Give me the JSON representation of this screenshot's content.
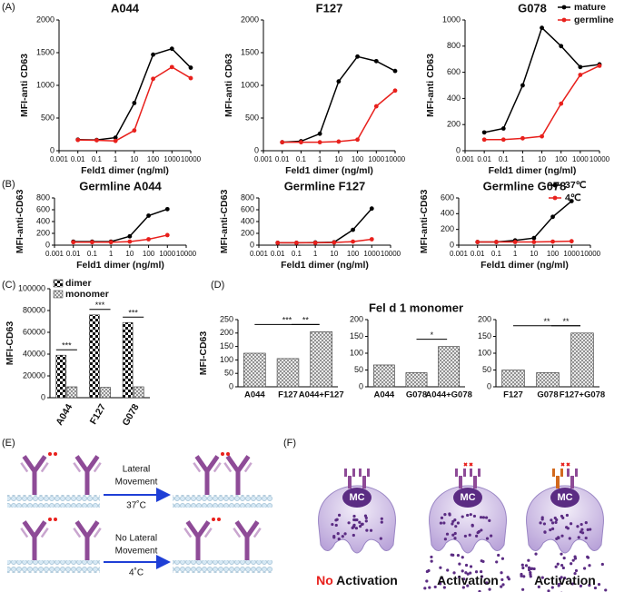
{
  "panel_labels": [
    "(A)",
    "(B)",
    "(C)",
    "(D)",
    "(E)",
    "(F)"
  ],
  "panel_d_title": "Fel d 1 monomer",
  "chart_data": [
    {
      "type": "line",
      "title": "A044",
      "x_label": "Feld1 dimer (ng/ml)",
      "y_label": "MFI-anti CD63",
      "log_x": true,
      "x": [
        0.01,
        0.1,
        1,
        10,
        100,
        1000,
        10000
      ],
      "xlim": [
        0.001,
        10000
      ],
      "xticks": [
        0.001,
        0.01,
        0.1,
        1,
        10,
        100,
        1000,
        10000
      ],
      "ylim": [
        0,
        2000
      ],
      "yticks": [
        0,
        500,
        1000,
        1500,
        2000
      ],
      "series": [
        {
          "color": "#000000",
          "values": [
            170,
            165,
            200,
            730,
            1470,
            1560,
            1270
          ]
        },
        {
          "color": "#e8201c",
          "values": [
            165,
            160,
            150,
            310,
            1100,
            1280,
            1110
          ]
        }
      ]
    },
    {
      "type": "line",
      "title": "F127",
      "x_label": "Feld1 dimer (ng/ml)",
      "y_label": "MFI-anti CD63",
      "log_x": true,
      "x": [
        0.01,
        0.1,
        1,
        10,
        100,
        1000,
        10000
      ],
      "xlim": [
        0.001,
        10000
      ],
      "xticks": [
        0.001,
        0.01,
        0.1,
        1,
        10,
        100,
        1000,
        10000
      ],
      "ylim": [
        0,
        2000
      ],
      "yticks": [
        0,
        500,
        1000,
        1500,
        2000
      ],
      "series": [
        {
          "color": "#000000",
          "values": [
            130,
            145,
            260,
            1060,
            1440,
            1370,
            1220
          ]
        },
        {
          "color": "#e8201c",
          "values": [
            130,
            130,
            130,
            140,
            170,
            680,
            920
          ]
        }
      ]
    },
    {
      "type": "line",
      "title": "G078",
      "x_label": "Feld1 dimer (ng/ml)",
      "y_label": "MFI-anti CD63",
      "log_x": true,
      "legend": true,
      "x": [
        0.01,
        0.1,
        1,
        10,
        100,
        1000,
        10000
      ],
      "xlim": [
        0.001,
        10000
      ],
      "xticks": [
        0.001,
        0.01,
        0.1,
        1,
        10,
        100,
        1000,
        10000
      ],
      "ylim": [
        0,
        1000
      ],
      "yticks": [
        0,
        200,
        400,
        600,
        800,
        1000
      ],
      "series": [
        {
          "name": "mature",
          "color": "#000000",
          "values": [
            140,
            170,
            500,
            940,
            800,
            640,
            660
          ]
        },
        {
          "name": "germline",
          "color": "#e8201c",
          "values": [
            85,
            85,
            95,
            110,
            360,
            580,
            650
          ]
        }
      ]
    },
    {
      "type": "line",
      "title": "Germline A044",
      "x_label": "Feld1 dimer (ng/ml)",
      "y_label": "MFI-anti-CD63",
      "log_x": true,
      "x": [
        0.01,
        0.1,
        1,
        10,
        100,
        1000
      ],
      "xlim": [
        0.001,
        10000
      ],
      "xticks": [
        0.001,
        0.01,
        0.1,
        1,
        10,
        100,
        1000,
        10000
      ],
      "ylim": [
        0,
        800
      ],
      "yticks": [
        0,
        200,
        400,
        600,
        800
      ],
      "series": [
        {
          "color": "#000000",
          "values": [
            60,
            60,
            60,
            150,
            500,
            610
          ]
        },
        {
          "color": "#e8201c",
          "values": [
            50,
            50,
            50,
            60,
            100,
            170
          ]
        }
      ]
    },
    {
      "type": "line",
      "title": "Germline F127",
      "x_label": "Feld1 dimer (ng/ml)",
      "y_label": "MFI-anti-CD63",
      "log_x": true,
      "x": [
        0.01,
        0.1,
        1,
        10,
        100,
        1000
      ],
      "xlim": [
        0.001,
        10000
      ],
      "xticks": [
        0.001,
        0.01,
        0.1,
        1,
        10,
        100,
        1000,
        10000
      ],
      "ylim": [
        0,
        800
      ],
      "yticks": [
        0,
        200,
        400,
        600,
        800
      ],
      "series": [
        {
          "color": "#000000",
          "values": [
            40,
            40,
            45,
            50,
            260,
            620
          ]
        },
        {
          "color": "#e8201c",
          "values": [
            40,
            40,
            40,
            45,
            60,
            100
          ]
        }
      ]
    },
    {
      "type": "line",
      "title": "Germline G078",
      "x_label": "Feld1 dimer (ng/ml)",
      "y_label": "MFI-anti-CD63",
      "log_x": true,
      "legend": true,
      "x": [
        0.01,
        0.1,
        1,
        10,
        100,
        1000
      ],
      "xlim": [
        0.001,
        10000
      ],
      "xticks": [
        0.001,
        0.01,
        0.1,
        1,
        10,
        100,
        1000,
        10000
      ],
      "ylim": [
        0,
        600
      ],
      "yticks": [
        0,
        200,
        400,
        600
      ],
      "series": [
        {
          "name": "37℃",
          "color": "#000000",
          "values": [
            40,
            40,
            60,
            90,
            360,
            560
          ]
        },
        {
          "name": "4℃",
          "color": "#e8201c",
          "values": [
            40,
            40,
            40,
            40,
            45,
            50
          ]
        }
      ]
    },
    {
      "type": "bar",
      "y_label": "MFI-CD63",
      "legend": true,
      "categories": [
        "A044",
        "F127",
        "G078"
      ],
      "ylim": [
        0,
        100000
      ],
      "yticks": [
        0,
        20000,
        40000,
        60000,
        80000,
        100000
      ],
      "series": [
        {
          "name": "dimer",
          "pattern": "checker",
          "values": [
            39000,
            76000,
            69000
          ]
        },
        {
          "name": "monomer",
          "pattern": "hatch",
          "values": [
            10000,
            9500,
            10000
          ]
        }
      ],
      "annotations": [
        {
          "text": "***",
          "categories": [
            0,
            0
          ]
        },
        {
          "text": "***",
          "categories": [
            1,
            1
          ]
        },
        {
          "text": "***",
          "categories": [
            2,
            2
          ]
        }
      ]
    },
    {
      "type": "bar",
      "y_label": "MFI-CD63",
      "categories": [
        "A044",
        "F127",
        "A044+F127"
      ],
      "pattern": "hatch",
      "values": [
        125,
        105,
        205
      ],
      "ylim": [
        0,
        250
      ],
      "yticks": [
        0,
        50,
        100,
        150,
        200,
        250
      ],
      "annotations": [
        {
          "text": "***",
          "categories": [
            0,
            2
          ]
        },
        {
          "text": "**",
          "categories": [
            1,
            2
          ]
        }
      ]
    },
    {
      "type": "bar",
      "categories": [
        "A044",
        "G078",
        "A044+G078"
      ],
      "pattern": "hatch",
      "values": [
        65,
        42,
        120
      ],
      "ylim": [
        0,
        200
      ],
      "yticks": [
        0,
        50,
        100,
        150,
        200
      ],
      "annotations": [
        {
          "text": "*",
          "categories": [
            1,
            2
          ]
        }
      ]
    },
    {
      "type": "bar",
      "categories": [
        "F127",
        "G078",
        "F127+G078"
      ],
      "pattern": "hatch",
      "values": [
        50,
        42,
        160
      ],
      "ylim": [
        0,
        200
      ],
      "yticks": [
        0,
        50,
        100,
        150,
        200
      ],
      "annotations": [
        {
          "text": "**",
          "categories": [
            0,
            2
          ]
        },
        {
          "text": "**",
          "categories": [
            1,
            2
          ]
        }
      ]
    }
  ],
  "diagram_e": {
    "steps": [
      {
        "lines": [
          "Lateral",
          "Movement"
        ],
        "temperature": "37˚C"
      },
      {
        "lines": [
          "No Lateral",
          "Movement"
        ],
        "temperature": "4˚C"
      }
    ]
  },
  "diagram_f": {
    "cells": [
      {
        "core": "MC",
        "highlight": "No",
        "caption": "Activation"
      },
      {
        "core": "MC",
        "caption": "Activation"
      },
      {
        "core": "MC",
        "caption": "Activation"
      }
    ]
  }
}
